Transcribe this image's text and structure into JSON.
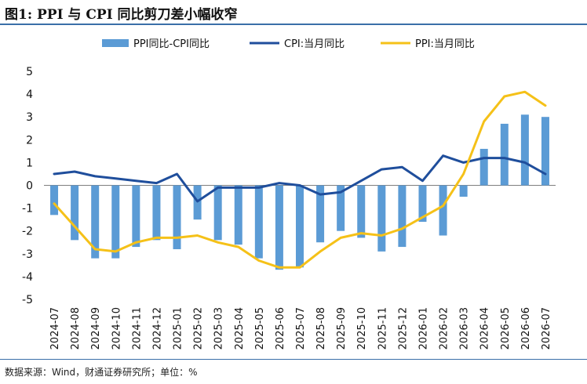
{
  "title": "图1: PPI 与 CPI 同比剪刀差小幅收窄",
  "source": "数据来源：Wind，财通证券研究所；单位：%",
  "chart_data": {
    "type": "bar",
    "categories": [
      "2024-07",
      "2024-08",
      "2024-09",
      "2024-10",
      "2024-11",
      "2024-12",
      "2025-01",
      "2025-02",
      "2025-03",
      "2025-04",
      "2025-05",
      "2025-06",
      "2025-07",
      "2025-08",
      "2025-09",
      "2025-10",
      "2025-11",
      "2025-12",
      "2026-01",
      "2026-02",
      "2026-03",
      "2026-04",
      "2026-05",
      "2026-06",
      "2026-07"
    ],
    "ylim": [
      -5,
      5
    ],
    "yticks": [
      -5,
      -4,
      -3,
      -2,
      -1,
      0,
      1,
      2,
      3,
      4,
      5
    ],
    "legend_position": "top",
    "series": [
      {
        "name": "PPI同比-CPI同比",
        "type": "bar",
        "color": "#5b9bd5",
        "values": [
          -1.3,
          -2.4,
          -3.2,
          -3.2,
          -2.7,
          -2.4,
          -2.8,
          -1.5,
          -2.4,
          -2.6,
          -3.2,
          -3.7,
          -3.6,
          -2.5,
          -2.0,
          -2.3,
          -2.9,
          -2.7,
          -1.6,
          -2.2,
          -0.5,
          1.6,
          2.7,
          3.1,
          3.0
        ]
      },
      {
        "name": "CPI:当月同比",
        "type": "line",
        "color": "#1f4e9c",
        "values": [
          0.5,
          0.6,
          0.4,
          0.3,
          0.2,
          0.1,
          0.5,
          -0.7,
          -0.1,
          -0.1,
          -0.1,
          0.1,
          0.0,
          -0.4,
          -0.3,
          0.2,
          0.7,
          0.8,
          0.2,
          1.3,
          1.0,
          1.2,
          1.2,
          1.0,
          0.5
        ]
      },
      {
        "name": "PPI:当月同比",
        "type": "line",
        "color": "#f5c118",
        "values": [
          -0.8,
          -1.8,
          -2.8,
          -2.9,
          -2.5,
          -2.3,
          -2.3,
          -2.2,
          -2.5,
          -2.7,
          -3.3,
          -3.6,
          -3.6,
          -2.9,
          -2.3,
          -2.1,
          -2.2,
          -1.9,
          -1.4,
          -0.9,
          0.5,
          2.8,
          3.9,
          4.1,
          3.5
        ]
      }
    ]
  }
}
